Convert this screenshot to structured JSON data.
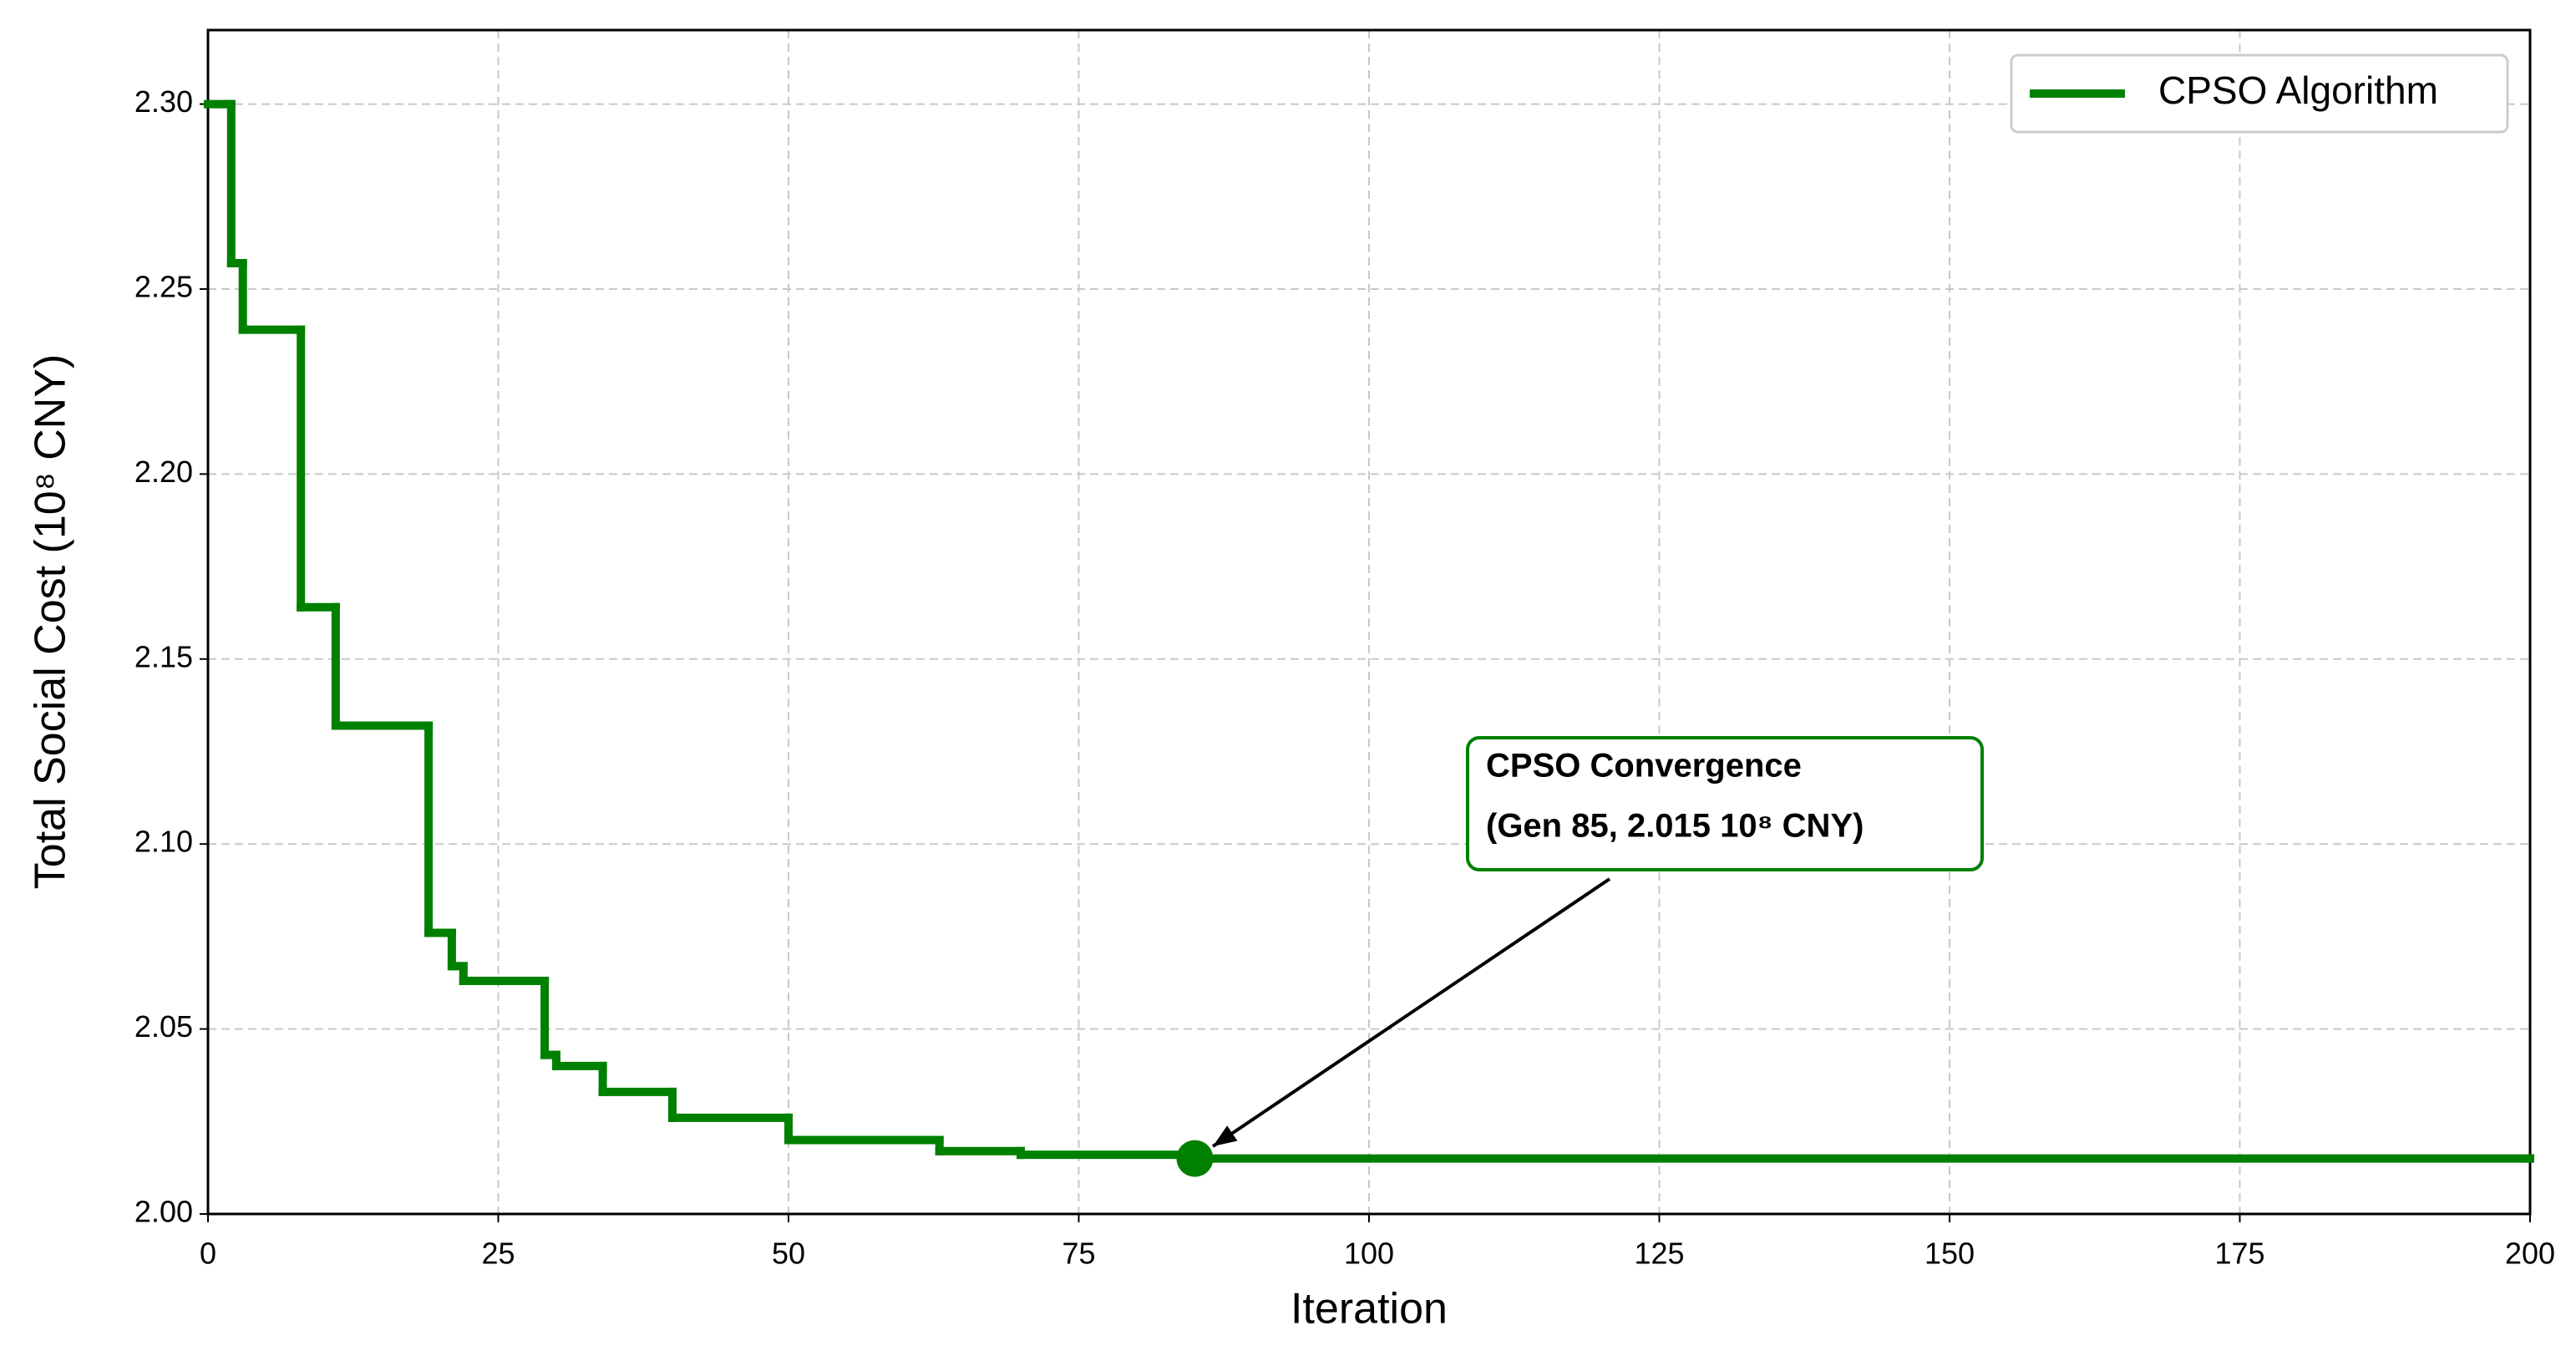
{
  "chart_data": {
    "type": "line",
    "drawstyle": "steps-post",
    "xlabel": "Iteration",
    "ylabel": "Total Social Cost (10⁸ CNY)",
    "x": [
      0,
      2,
      3,
      8,
      11,
      19,
      21,
      22,
      29,
      30,
      34,
      40,
      50,
      63,
      70,
      85,
      200
    ],
    "series": [
      {
        "name": "CPSO Algorithm",
        "color": "#008000",
        "values": [
          2.3,
          2.257,
          2.239,
          2.164,
          2.132,
          2.076,
          2.067,
          2.063,
          2.043,
          2.04,
          2.033,
          2.026,
          2.02,
          2.017,
          2.016,
          2.015,
          2.015
        ]
      }
    ],
    "xlim": [
      0,
      200
    ],
    "ylim": [
      2.0,
      2.32
    ],
    "xticks": [
      0,
      25,
      50,
      75,
      100,
      125,
      150,
      175,
      200
    ],
    "yticks": [
      {
        "value": 2.0,
        "label": "2.00"
      },
      2.05,
      {
        "value": 2.1,
        "label": "2.10"
      },
      2.15,
      {
        "value": 2.2,
        "label": "2.20"
      },
      2.25,
      {
        "value": 2.3,
        "label": "2.30"
      }
    ],
    "grid": true,
    "legend": "upper right",
    "annotation": {
      "text": [
        "CPSO Convergence",
        "(Gen 85, 2.015 10⁸ CNY)"
      ],
      "x": 85,
      "y": 2.015,
      "color": "#008000"
    }
  }
}
